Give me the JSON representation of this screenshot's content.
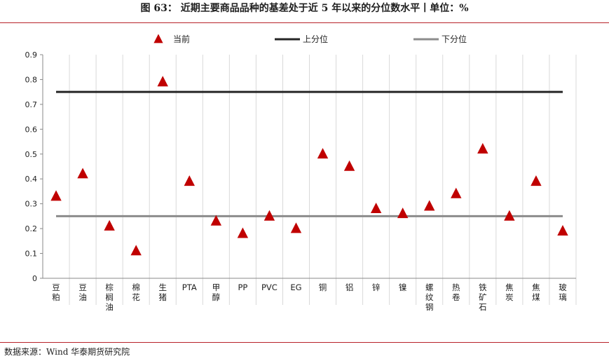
{
  "header": {
    "title": "图 63：  近期主要商品品种的基差处于近 5 年以来的分位数水平丨单位：%"
  },
  "footer": {
    "source": "数据来源：Wind  华泰期货研究院"
  },
  "colors": {
    "marker": "#c00000",
    "upper": "#262626",
    "lower": "#8c8c8c",
    "rule": "#b8232a"
  },
  "chart_data": {
    "type": "scatter",
    "categories": [
      "豆粕",
      "豆油",
      "棕榈油",
      "棉花",
      "生猪",
      "PTA",
      "甲醇",
      "PP",
      "PVC",
      "EG",
      "铜",
      "铝",
      "锌",
      "镍",
      "螺纹钢",
      "热卷",
      "铁矿石",
      "焦炭",
      "焦煤",
      "玻璃"
    ],
    "category_labels": [
      "豆\n粕",
      "豆\n油",
      "棕\n榈\n油",
      "棉\n花",
      "生\n猪",
      "PTA",
      "甲\n醇",
      "PP",
      "PVC",
      "EG",
      "铜",
      "铝",
      "锌",
      "镍",
      "螺\n纹\n钢",
      "热\n卷",
      "铁\n矿\n石",
      "焦\n炭",
      "焦\n煤",
      "玻\n璃"
    ],
    "series": [
      {
        "name": "当前",
        "style": "triangle-marker",
        "values": [
          0.33,
          0.42,
          0.21,
          0.11,
          0.79,
          0.39,
          0.23,
          0.18,
          0.25,
          0.2,
          0.5,
          0.45,
          0.28,
          0.26,
          0.29,
          0.34,
          0.52,
          0.25,
          0.39,
          0.19
        ]
      },
      {
        "name": "上分位",
        "style": "line",
        "values": [
          0.75
        ]
      },
      {
        "name": "下分位",
        "style": "line",
        "values": [
          0.25
        ]
      }
    ],
    "yticks": [
      "0",
      "0.1",
      "0.2",
      "0.3",
      "0.4",
      "0.5",
      "0.6",
      "0.7",
      "0.8",
      "0.9"
    ],
    "ylim": [
      0,
      0.9
    ],
    "grid": "vertical dividers between categories",
    "legend": "top-center"
  }
}
